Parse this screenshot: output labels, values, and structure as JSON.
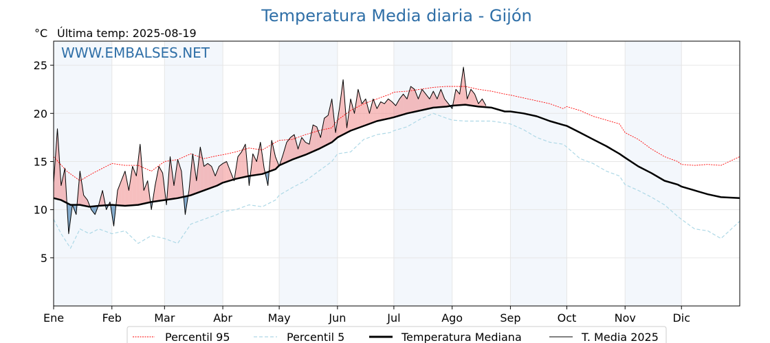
{
  "chart_data": {
    "type": "line",
    "title": "Temperatura Media diaria - Gijón",
    "unit_label": "°C",
    "last_temp_label": "Última temp: 2025-08-19",
    "watermark": "WWW.EMBALSES.NET",
    "ylim": [
      0,
      27.5
    ],
    "yticks": [
      5,
      10,
      15,
      20,
      25
    ],
    "xlim": [
      1,
      366
    ],
    "months": [
      {
        "label": "Ene",
        "start": 1
      },
      {
        "label": "Feb",
        "start": 32
      },
      {
        "label": "Mar",
        "start": 60
      },
      {
        "label": "Abr",
        "start": 91
      },
      {
        "label": "May",
        "start": 121
      },
      {
        "label": "Jun",
        "start": 152
      },
      {
        "label": "Jul",
        "start": 182
      },
      {
        "label": "Ago",
        "start": 213
      },
      {
        "label": "Sep",
        "start": 244
      },
      {
        "label": "Oct",
        "start": 274
      },
      {
        "label": "Nov",
        "start": 305
      },
      {
        "label": "Dic",
        "start": 335
      }
    ],
    "grid": true,
    "legend_position": "bottom",
    "colors": {
      "p95": "#ff0000",
      "p5": "#add8e6",
      "median": "#000000",
      "current": "#000000",
      "above_fill": "#f08080",
      "below_fill": "#4682b4",
      "band": "#dce9f5",
      "title": "#2f6fa7"
    },
    "series": [
      {
        "key": "p95",
        "name": "Percentil 95",
        "x": [
          1,
          8,
          15,
          22,
          29,
          32,
          39,
          46,
          53,
          60,
          67,
          74,
          81,
          88,
          91,
          98,
          105,
          112,
          119,
          121,
          128,
          135,
          142,
          149,
          152,
          159,
          166,
          173,
          180,
          182,
          189,
          196,
          203,
          210,
          213,
          220,
          227,
          234,
          241,
          244,
          251,
          258,
          265,
          272,
          274,
          281,
          288,
          295,
          302,
          305,
          312,
          319,
          326,
          333,
          335,
          342,
          349,
          356,
          366
        ],
        "y": [
          15.5,
          14,
          13,
          13.8,
          14.5,
          14.8,
          14.6,
          14.6,
          14,
          15,
          15.2,
          15.8,
          15.3,
          15.6,
          15.7,
          16,
          16.4,
          16.2,
          17,
          17.2,
          17.3,
          17.8,
          18.2,
          18.5,
          19.3,
          20.3,
          21,
          21.5,
          22,
          22.2,
          22.3,
          22.5,
          22.7,
          22.8,
          22.8,
          22.8,
          22.5,
          22.3,
          22,
          21.9,
          21.6,
          21.3,
          21,
          20.5,
          20.7,
          20.3,
          19.7,
          19.3,
          18.9,
          18,
          17.3,
          16.3,
          15.5,
          15,
          14.7,
          14.6,
          14.7,
          14.6,
          15.5
        ]
      },
      {
        "key": "p5",
        "name": "Percentil 5",
        "x": [
          1,
          5,
          10,
          15,
          20,
          25,
          32,
          39,
          46,
          53,
          60,
          67,
          74,
          81,
          88,
          91,
          98,
          105,
          112,
          119,
          121,
          128,
          135,
          142,
          149,
          152,
          159,
          166,
          173,
          180,
          182,
          189,
          196,
          203,
          210,
          213,
          220,
          227,
          234,
          241,
          244,
          251,
          258,
          265,
          272,
          274,
          281,
          288,
          295,
          302,
          305,
          312,
          319,
          326,
          333,
          335,
          342,
          349,
          356,
          366
        ],
        "y": [
          9,
          7.5,
          6,
          8,
          7.5,
          8,
          7.5,
          7.8,
          6.5,
          7.3,
          7,
          6.5,
          8.5,
          9,
          9.5,
          9.8,
          10,
          10.5,
          10.3,
          11,
          11.5,
          12.3,
          13,
          14,
          15,
          15.8,
          16,
          17.3,
          17.8,
          18,
          18.2,
          18.6,
          19.4,
          20,
          19.5,
          19.3,
          19.2,
          19.2,
          19.2,
          19,
          18.9,
          18.3,
          17.5,
          17,
          16.8,
          16.5,
          15.3,
          14.8,
          14,
          13.5,
          12.6,
          12,
          11.3,
          10.5,
          9.3,
          9,
          8,
          7.8,
          7,
          8.8
        ]
      },
      {
        "key": "median",
        "name": "Temperatura Mediana",
        "x": [
          1,
          5,
          10,
          15,
          20,
          25,
          32,
          39,
          46,
          53,
          60,
          67,
          74,
          81,
          88,
          91,
          98,
          105,
          112,
          119,
          121,
          128,
          135,
          142,
          149,
          152,
          159,
          166,
          173,
          180,
          182,
          189,
          196,
          203,
          210,
          213,
          220,
          227,
          234,
          241,
          244,
          251,
          258,
          265,
          272,
          274,
          281,
          288,
          295,
          302,
          305,
          312,
          319,
          326,
          333,
          335,
          342,
          349,
          356,
          366
        ],
        "y": [
          11.2,
          11,
          10.5,
          10.5,
          10.3,
          10.4,
          10.5,
          10.4,
          10.5,
          10.8,
          11,
          11.2,
          11.5,
          12,
          12.5,
          12.8,
          13.2,
          13.5,
          13.7,
          14.2,
          14.6,
          15.2,
          15.7,
          16.3,
          17,
          17.5,
          18.2,
          18.7,
          19.2,
          19.5,
          19.6,
          20,
          20.3,
          20.6,
          20.7,
          20.8,
          20.9,
          20.7,
          20.6,
          20.2,
          20.2,
          20,
          19.7,
          19.2,
          18.8,
          18.7,
          18,
          17.3,
          16.6,
          15.8,
          15.4,
          14.5,
          13.8,
          13,
          12.6,
          12.4,
          12,
          11.6,
          11.3,
          11.2
        ]
      },
      {
        "key": "current",
        "name": "T. Media 2025",
        "x": [
          1,
          3,
          5,
          7,
          9,
          11,
          13,
          15,
          17,
          19,
          21,
          23,
          25,
          27,
          29,
          31,
          33,
          35,
          37,
          39,
          41,
          43,
          45,
          47,
          49,
          51,
          53,
          55,
          57,
          59,
          61,
          63,
          65,
          67,
          69,
          71,
          73,
          75,
          77,
          79,
          81,
          83,
          85,
          87,
          89,
          91,
          93,
          95,
          97,
          99,
          101,
          103,
          105,
          107,
          109,
          111,
          113,
          115,
          117,
          119,
          121,
          123,
          125,
          127,
          129,
          131,
          133,
          135,
          137,
          139,
          141,
          143,
          145,
          147,
          149,
          151,
          153,
          155,
          157,
          159,
          161,
          163,
          165,
          167,
          169,
          171,
          173,
          175,
          177,
          179,
          181,
          183,
          185,
          187,
          189,
          191,
          193,
          195,
          197,
          199,
          201,
          203,
          205,
          207,
          209,
          211,
          213,
          215,
          217,
          219,
          221,
          223,
          225,
          227,
          229,
          231
        ],
        "y": [
          12.8,
          18.4,
          12.5,
          14.3,
          7.5,
          10.5,
          9.5,
          14,
          11.5,
          11,
          10,
          9.5,
          10.5,
          12,
          10,
          10.8,
          8.3,
          12,
          13,
          14,
          12,
          14.5,
          13.5,
          16.8,
          12,
          13,
          10,
          12.5,
          14.5,
          13.8,
          10.5,
          15.5,
          12.5,
          15.2,
          14,
          9.5,
          12,
          15.8,
          13,
          16.5,
          14.5,
          14.8,
          14.5,
          13.5,
          14.5,
          14.8,
          15,
          14,
          13,
          15.5,
          16,
          16.8,
          12.5,
          15.8,
          15,
          17,
          14.3,
          12.5,
          17.2,
          15.5,
          14.5,
          15.7,
          17,
          17.5,
          17.8,
          16.3,
          17.5,
          17,
          16.8,
          18.8,
          18.6,
          17.5,
          19.5,
          19.8,
          21.5,
          18,
          20.5,
          23.5,
          18.5,
          21.5,
          20,
          22.5,
          21,
          21.5,
          20,
          21.5,
          20.5,
          21.2,
          21,
          21.5,
          21.2,
          20.8,
          21.5,
          22,
          21.5,
          22.8,
          22.5,
          21.5,
          22.5,
          22,
          21.5,
          22.3,
          21.5,
          22.5,
          21.5,
          21,
          20.5,
          22.5,
          22,
          24.8,
          21.5,
          22.5,
          22,
          21,
          21.5,
          20.8
        ]
      }
    ]
  }
}
